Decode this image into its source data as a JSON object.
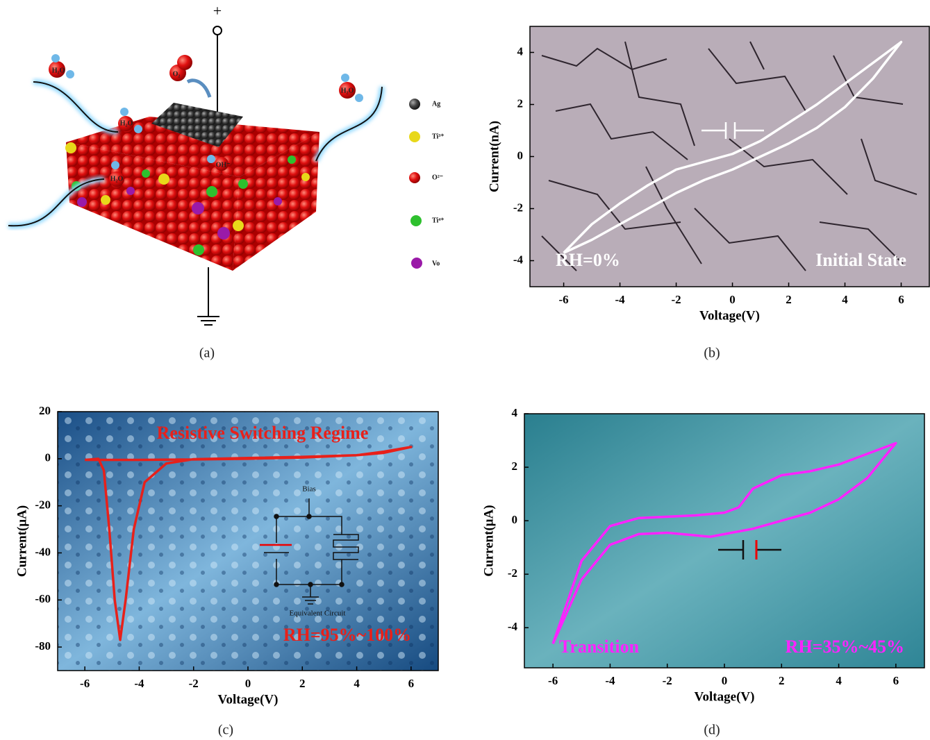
{
  "diagram": {
    "caption": "(a)",
    "terminal": "+",
    "molecules": [
      "H₂O",
      "H₂O",
      "H₂O",
      "H₂O",
      "O₂",
      "OH⁻"
    ],
    "legend": [
      "Ag",
      "Ti³⁺",
      "O²⁻",
      "Ti⁴⁺",
      "Vo"
    ]
  },
  "chart_data": [
    {
      "type": "line",
      "caption": "(b)",
      "x_label": "Voltage(V)",
      "y_label": "Current(nA)",
      "annotations": [
        "RH=0%",
        "Initial State"
      ],
      "color": "#ffffff",
      "x": [
        -6,
        -5,
        -4,
        -3,
        -2,
        -1,
        0,
        1,
        2,
        3,
        4,
        5,
        6,
        5,
        4,
        3,
        2,
        1,
        0,
        -1,
        -2,
        -3,
        -4,
        -5,
        -6
      ],
      "values": [
        -3.7,
        -2.6,
        -1.8,
        -1.1,
        -0.5,
        -0.2,
        0.1,
        0.6,
        1.3,
        2.0,
        2.8,
        3.6,
        4.4,
        3.0,
        1.9,
        1.1,
        0.5,
        0.0,
        -0.5,
        -0.9,
        -1.4,
        -2.0,
        -2.6,
        -3.2,
        -3.7
      ],
      "xlim": [
        -7.2,
        7
      ],
      "xticks": [
        -6,
        -4,
        -2,
        0,
        2,
        4,
        6
      ],
      "ylim": [
        -5,
        5
      ],
      "yticks": [
        -4,
        -2,
        0,
        2,
        4
      ]
    },
    {
      "type": "line",
      "caption": "(c)",
      "x_label": "Voltage(V)",
      "y_label": "Current(μA)",
      "annotations": [
        "Resistive Switching Regime",
        "RH=95%~100%",
        "Bias",
        "Equivalent Circuit"
      ],
      "color": "#e8201a",
      "x": [
        -6,
        -4,
        -2,
        0,
        2,
        4,
        5,
        6,
        5,
        4,
        2,
        0,
        -2,
        -3,
        -3.8,
        -4.2,
        -4.5,
        -4.7,
        -4.9,
        -5.1,
        -5.3,
        -5.5,
        -6
      ],
      "values": [
        -0.5,
        -0.5,
        -0.3,
        0,
        0.5,
        1.5,
        2.5,
        5,
        3,
        1.5,
        0.8,
        0.3,
        -0.2,
        -2,
        -10,
        -30,
        -60,
        -77,
        -60,
        -30,
        -5,
        0,
        -0.5
      ],
      "xlim": [
        -7,
        7
      ],
      "xticks": [
        -6,
        -4,
        -2,
        0,
        2,
        4,
        6
      ],
      "ylim": [
        -90,
        20
      ],
      "yticks": [
        -80,
        -60,
        -40,
        -20,
        0,
        20
      ]
    },
    {
      "type": "line",
      "caption": "(d)",
      "x_label": "Voltage(V)",
      "y_label": "Current(μA)",
      "annotations": [
        "Transition",
        "RH=35%~45%"
      ],
      "color": "#ff22ff",
      "x": [
        -6,
        -5,
        -4,
        -3,
        -2,
        -1,
        0,
        0.5,
        1,
        2,
        3,
        4,
        5,
        6,
        5,
        4,
        3,
        2,
        1,
        0,
        -0.5,
        -1,
        -2,
        -3,
        -4,
        -5,
        -6
      ],
      "values": [
        -4.6,
        -1.5,
        -0.2,
        0.1,
        0.15,
        0.2,
        0.3,
        0.5,
        1.2,
        1.7,
        1.85,
        2.1,
        2.5,
        2.9,
        1.6,
        0.8,
        0.3,
        0,
        -0.3,
        -0.5,
        -0.6,
        -0.55,
        -0.45,
        -0.5,
        -0.9,
        -2.2,
        -4.6
      ],
      "xlim": [
        -7,
        7
      ],
      "xticks": [
        -6,
        -4,
        -2,
        0,
        2,
        4,
        6
      ],
      "ylim": [
        -5.5,
        4
      ],
      "yticks": [
        -4,
        -2,
        0,
        2,
        4
      ]
    }
  ]
}
